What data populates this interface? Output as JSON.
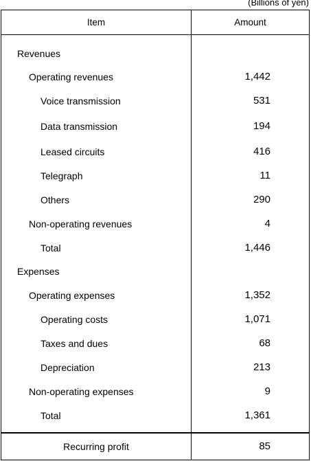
{
  "unit_note": "(Billions of yen)",
  "header": {
    "item": "Item",
    "amount": "Amount"
  },
  "rows": [
    {
      "label": "Revenues",
      "level": 0,
      "value": ""
    },
    {
      "label": "Operating revenues",
      "level": 1,
      "value": "1,442"
    },
    {
      "label": "Voice transmission",
      "level": 2,
      "value": "531"
    },
    {
      "label": "Data transmission",
      "level": 2,
      "value": "194"
    },
    {
      "label": "Leased circuits",
      "level": 2,
      "value": "416"
    },
    {
      "label": "Telegraph",
      "level": 2,
      "value": "11"
    },
    {
      "label": "Others",
      "level": 2,
      "value": "290"
    },
    {
      "label": "Non-operating revenues",
      "level": 1,
      "value": "4"
    },
    {
      "label": "Total",
      "level": 2,
      "value": "1,446"
    },
    {
      "label": "Expenses",
      "level": 0,
      "value": ""
    },
    {
      "label": "Operating expenses",
      "level": 1,
      "value": "1,352"
    },
    {
      "label": "Operating costs",
      "level": 2,
      "value": "1,071"
    },
    {
      "label": "Taxes and dues",
      "level": 2,
      "value": "68"
    },
    {
      "label": "Depreciation",
      "level": 2,
      "value": "213"
    },
    {
      "label": "Non-operating expenses",
      "level": 1,
      "value": "9"
    },
    {
      "label": "Total",
      "level": 2,
      "value": "1,361"
    }
  ],
  "footer": {
    "label": "Recurring profit",
    "value": "85"
  }
}
